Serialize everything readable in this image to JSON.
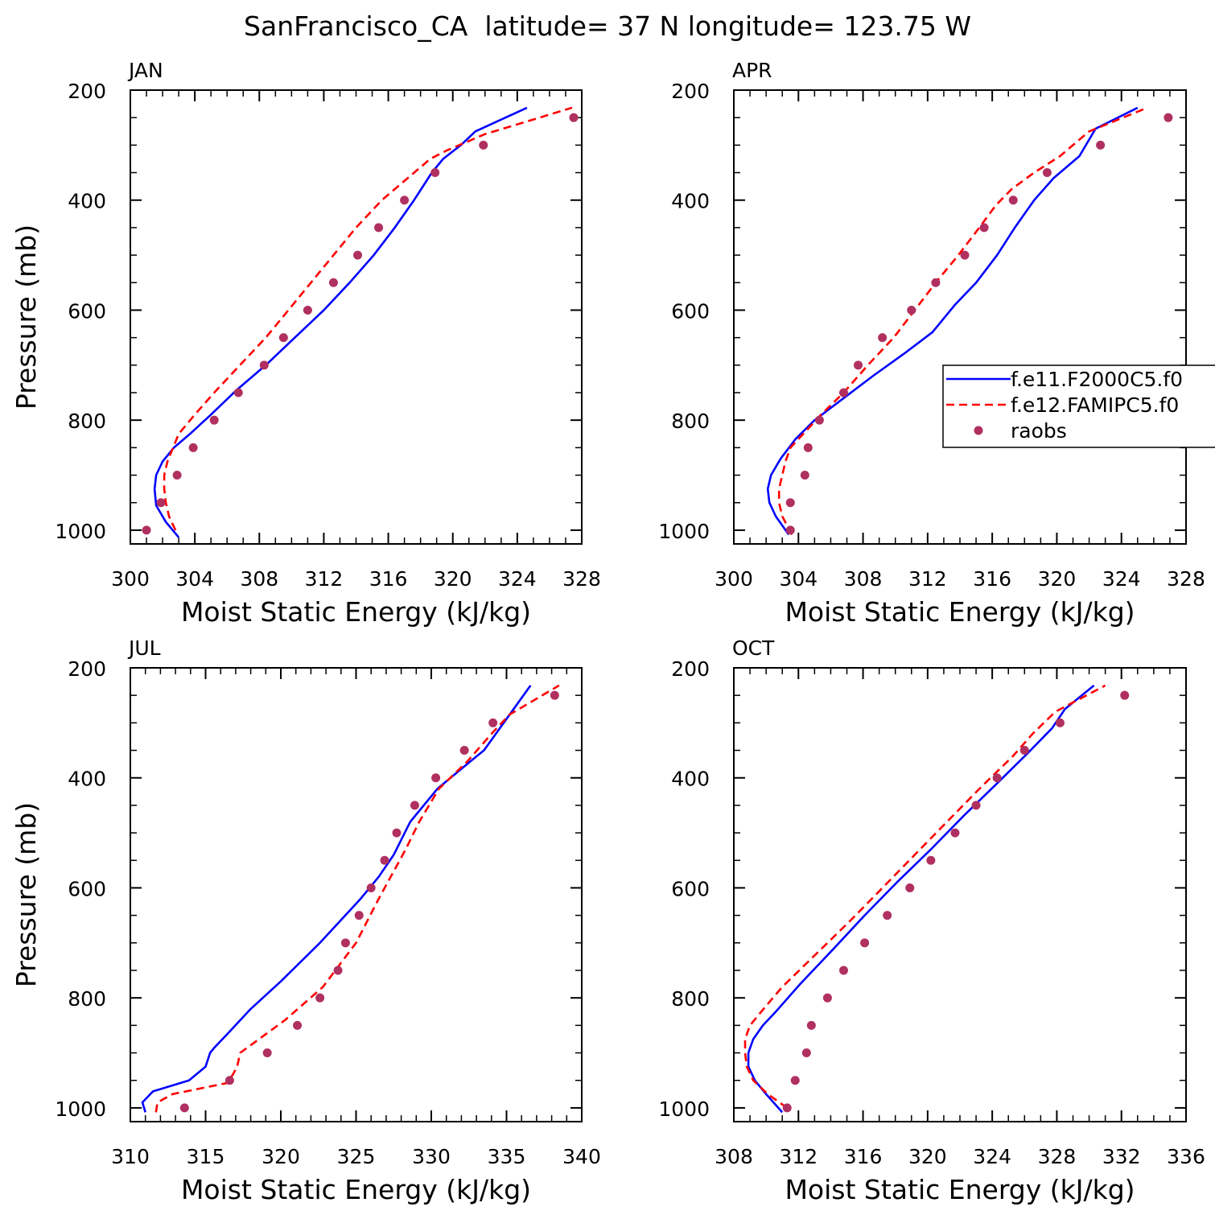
{
  "figure": {
    "title": "SanFrancisco_CA  latitude= 37 N longitude= 123.75 W"
  },
  "legend": {
    "placement": "right-middle of APR panel",
    "entries": [
      {
        "label": "f.e11.F2000C5.f0",
        "color": "#0000ff",
        "style": "solid"
      },
      {
        "label": "f.e12.FAMIPC5.f0",
        "color": "#ff0000",
        "style": "dashed"
      },
      {
        "label": "raobs",
        "color": "#b03060",
        "style": "marker"
      }
    ]
  },
  "chart_data": [
    {
      "type": "line",
      "panel_label": "JAN",
      "xlabel": "Moist Static Energy (kJ/kg)",
      "ylabel": "Pressure (mb)",
      "xlim": [
        300,
        328
      ],
      "ylim": [
        200,
        1025
      ],
      "y_inverted": true,
      "xticks": [
        300,
        304,
        308,
        312,
        316,
        320,
        324,
        328
      ],
      "x_minor_step": 1,
      "yticks": [
        200,
        400,
        600,
        800,
        1000
      ],
      "y_minor_step": 50,
      "series": [
        {
          "name": "f.e11.F2000C5.f0",
          "color": "#0000ff",
          "style": "solid",
          "x": [
            303.0,
            302.2,
            301.6,
            301.5,
            301.6,
            302.0,
            302.7,
            303.7,
            305.0,
            306.6,
            308.4,
            310.2,
            312.0,
            313.6,
            315.1,
            316.4,
            317.6,
            318.7,
            319.4,
            320.5,
            321.4,
            324.6
          ],
          "y": [
            1013,
            985,
            955,
            925,
            900,
            875,
            850,
            825,
            790,
            745,
            700,
            650,
            600,
            550,
            500,
            450,
            400,
            350,
            325,
            300,
            275,
            232
          ]
        },
        {
          "name": "f.e12.FAMIPC5.f0",
          "color": "#ff0000",
          "style": "dashed",
          "x": [
            302.8,
            302.4,
            302.2,
            302.1,
            302.1,
            302.3,
            303.0,
            304.0,
            305.2,
            306.8,
            308.4,
            309.8,
            311.2,
            312.6,
            314.0,
            315.6,
            316.2,
            317.4,
            318.6,
            319.6,
            322.0,
            327.4
          ],
          "y": [
            1000,
            975,
            950,
            925,
            900,
            875,
            825,
            790,
            750,
            700,
            650,
            600,
            550,
            500,
            450,
            400,
            385,
            355,
            325,
            310,
            280,
            232
          ]
        },
        {
          "name": "raobs",
          "color": "#b03060",
          "style": "marker",
          "x": [
            301.0,
            301.9,
            302.9,
            303.9,
            305.2,
            306.7,
            308.3,
            309.5,
            311.0,
            312.6,
            314.1,
            315.4,
            317.0,
            318.9,
            321.9,
            327.5
          ],
          "y": [
            1000,
            950,
            900,
            850,
            800,
            750,
            700,
            650,
            600,
            550,
            500,
            450,
            400,
            350,
            300,
            250
          ]
        }
      ]
    },
    {
      "type": "line",
      "panel_label": "APR",
      "xlabel": "Moist Static Energy (kJ/kg)",
      "ylabel": "",
      "xlim": [
        300,
        328
      ],
      "ylim": [
        200,
        1025
      ],
      "y_inverted": true,
      "xticks": [
        300,
        304,
        308,
        312,
        316,
        320,
        324,
        328
      ],
      "x_minor_step": 1,
      "yticks": [
        200,
        400,
        600,
        800,
        1000
      ],
      "y_minor_step": 50,
      "series": [
        {
          "name": "f.e11.F2000C5.f0",
          "color": "#0000ff",
          "style": "solid",
          "x": [
            303.4,
            302.6,
            302.2,
            302.1,
            302.3,
            302.9,
            303.8,
            305.0,
            306.8,
            308.6,
            310.5,
            312.3,
            313.7,
            315.0,
            316.3,
            317.4,
            318.6,
            319.8,
            321.4,
            322.4,
            325.0
          ],
          "y": [
            1008,
            975,
            950,
            925,
            900,
            870,
            835,
            800,
            760,
            720,
            680,
            640,
            590,
            550,
            500,
            450,
            400,
            360,
            320,
            270,
            232
          ]
        },
        {
          "name": "f.e12.FAMIPC5.f0",
          "color": "#ff0000",
          "style": "dashed",
          "x": [
            303.6,
            303.0,
            302.8,
            302.8,
            303.0,
            303.2,
            303.5,
            304.3,
            305.4,
            306.8,
            308.3,
            309.9,
            311.2,
            312.5,
            313.9,
            315.2,
            316.2,
            317.2,
            318.6,
            320.2,
            322.0,
            325.6
          ],
          "y": [
            1008,
            975,
            950,
            925,
            900,
            875,
            850,
            825,
            790,
            750,
            700,
            650,
            600,
            550,
            500,
            450,
            410,
            380,
            350,
            320,
            275,
            232
          ]
        },
        {
          "name": "raobs",
          "color": "#b03060",
          "style": "marker",
          "x": [
            303.5,
            303.5,
            304.4,
            304.6,
            305.3,
            306.8,
            307.7,
            309.2,
            311.0,
            312.5,
            314.3,
            315.5,
            317.3,
            319.4,
            322.7,
            326.9
          ],
          "y": [
            1000,
            950,
            900,
            850,
            800,
            750,
            700,
            650,
            600,
            550,
            500,
            450,
            400,
            350,
            300,
            250
          ]
        }
      ]
    },
    {
      "type": "line",
      "panel_label": "JUL",
      "xlabel": "Moist Static Energy (kJ/kg)",
      "ylabel": "Pressure (mb)",
      "xlim": [
        310,
        340
      ],
      "ylim": [
        200,
        1025
      ],
      "y_inverted": true,
      "xticks": [
        310,
        315,
        320,
        325,
        330,
        335,
        340
      ],
      "x_minor_step": 1,
      "yticks": [
        200,
        400,
        600,
        800,
        1000
      ],
      "y_minor_step": 50,
      "series": [
        {
          "name": "f.e11.F2000C5.f0",
          "color": "#0000ff",
          "style": "solid",
          "x": [
            311.0,
            310.8,
            311.5,
            313.9,
            315.0,
            315.3,
            315.6,
            316.3,
            318.0,
            320.0,
            322.6,
            325.3,
            326.5,
            327.5,
            328.6,
            330.4,
            332.6,
            333.5,
            336.6
          ],
          "y": [
            1008,
            990,
            970,
            950,
            925,
            900,
            890,
            870,
            820,
            770,
            700,
            620,
            580,
            540,
            480,
            420,
            370,
            350,
            232
          ]
        },
        {
          "name": "f.e12.FAMIPC5.f0",
          "color": "#ff0000",
          "style": "dashed",
          "x": [
            311.7,
            311.8,
            312.8,
            316.4,
            316.8,
            317.1,
            317.3,
            317.8,
            320.3,
            322.8,
            325.0,
            326.5,
            327.5,
            328.3,
            329.2,
            330.5,
            332.4,
            334.0,
            335.2,
            338.5
          ],
          "y": [
            1008,
            990,
            975,
            955,
            940,
            925,
            900,
            890,
            840,
            780,
            700,
            620,
            570,
            530,
            480,
            420,
            370,
            320,
            285,
            232
          ]
        },
        {
          "name": "raobs",
          "color": "#b03060",
          "style": "marker",
          "x": [
            313.6,
            316.6,
            319.1,
            321.1,
            322.6,
            323.8,
            324.3,
            325.2,
            326.0,
            326.9,
            327.7,
            328.9,
            330.3,
            332.2,
            334.1,
            338.2
          ],
          "y": [
            1000,
            950,
            900,
            850,
            800,
            750,
            700,
            650,
            600,
            550,
            500,
            450,
            400,
            350,
            300,
            250
          ]
        }
      ]
    },
    {
      "type": "line",
      "panel_label": "OCT",
      "xlabel": "Moist Static Energy (kJ/kg)",
      "ylabel": "",
      "xlim": [
        308,
        336
      ],
      "ylim": [
        200,
        1025
      ],
      "y_inverted": true,
      "xticks": [
        308,
        312,
        316,
        320,
        324,
        328,
        332,
        336
      ],
      "x_minor_step": 1,
      "yticks": [
        200,
        400,
        600,
        800,
        1000
      ],
      "y_minor_step": 50,
      "series": [
        {
          "name": "f.e11.F2000C5.f0",
          "color": "#0000ff",
          "style": "solid",
          "x": [
            311.0,
            310.0,
            309.3,
            308.9,
            308.9,
            309.2,
            309.8,
            310.6,
            312.1,
            314.2,
            316.1,
            318.1,
            320.2,
            322.2,
            324.3,
            326.2,
            327.7,
            328.5,
            330.3
          ],
          "y": [
            1008,
            975,
            950,
            925,
            900,
            875,
            850,
            825,
            775,
            710,
            650,
            590,
            530,
            470,
            410,
            355,
            310,
            275,
            232
          ]
        },
        {
          "name": "f.e12.FAMIPC5.f0",
          "color": "#ff0000",
          "style": "dashed",
          "x": [
            311.3,
            310.1,
            309.2,
            308.8,
            308.7,
            308.7,
            309.0,
            309.7,
            311.0,
            313.1,
            315.2,
            317.2,
            319.2,
            321.2,
            323.2,
            325.3,
            326.5,
            327.9,
            331.0
          ],
          "y": [
            1000,
            975,
            950,
            925,
            900,
            875,
            850,
            825,
            780,
            720,
            660,
            600,
            540,
            480,
            420,
            360,
            320,
            280,
            232
          ]
        },
        {
          "name": "raobs",
          "color": "#b03060",
          "style": "marker",
          "x": [
            311.3,
            311.8,
            312.5,
            312.8,
            313.8,
            314.8,
            316.1,
            317.5,
            318.9,
            320.2,
            321.7,
            323.0,
            324.3,
            326.0,
            328.2,
            332.2
          ],
          "y": [
            1000,
            950,
            900,
            850,
            800,
            750,
            700,
            650,
            600,
            550,
            500,
            450,
            400,
            350,
            300,
            250
          ]
        }
      ]
    }
  ]
}
